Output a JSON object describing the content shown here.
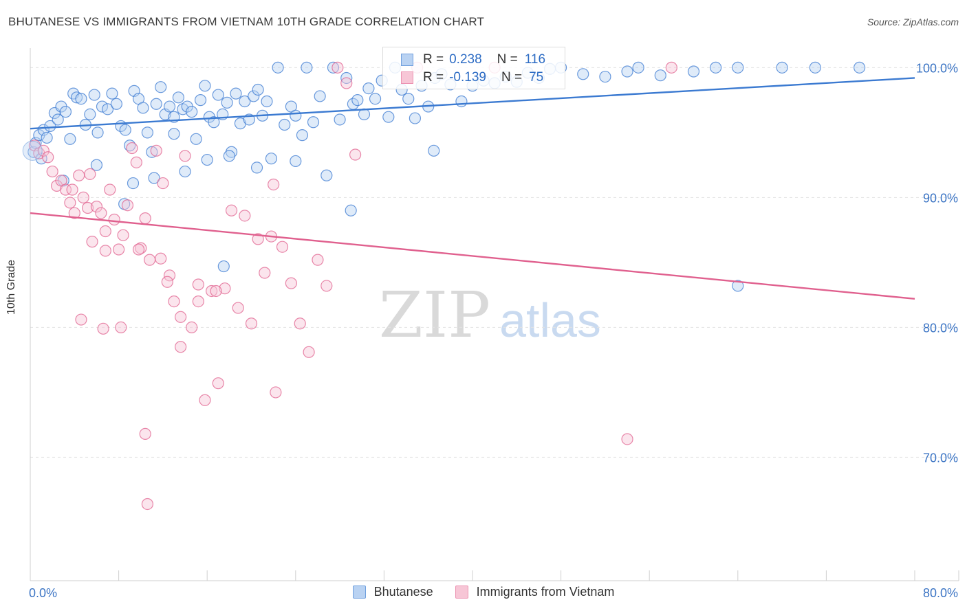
{
  "title": "BHUTANESE VS IMMIGRANTS FROM VIETNAM 10TH GRADE CORRELATION CHART",
  "source": "Source: ZipAtlas.com",
  "watermark": {
    "zip": "ZIP",
    "atlas": "atlas"
  },
  "legend_stats": [
    {
      "r_label": "R =",
      "r": "0.238",
      "n_label": "N =",
      "n": "116",
      "color": "#6f9fde",
      "fill": "#b9d2f2"
    },
    {
      "r_label": "R =",
      "r": "-0.139",
      "n_label": "N =",
      "n": "75",
      "color": "#ec93b2",
      "fill": "#f7c6d6"
    }
  ],
  "chart_data": {
    "type": "scatter",
    "title": "BHUTANESE VS IMMIGRANTS FROM VIETNAM 10TH GRADE CORRELATION CHART",
    "xlabel": "",
    "ylabel": "10th Grade",
    "xlim": [
      0,
      80
    ],
    "ylim": [
      60.5,
      101.5
    ],
    "x_ticks": [
      {
        "value": 0,
        "label": "0.0%"
      },
      {
        "value": 80,
        "label": "80.0%"
      }
    ],
    "y_ticks": [
      {
        "value": 100,
        "label": "100.0%"
      },
      {
        "value": 90,
        "label": "90.0%"
      },
      {
        "value": 80,
        "label": "80.0%"
      },
      {
        "value": 70,
        "label": "70.0%"
      }
    ],
    "grid": true,
    "legend": "bottom-center",
    "series": [
      {
        "name": "Bhutanese",
        "color": "#3b7ad1",
        "fill": "#b9d2f2",
        "trend": {
          "x": [
            0,
            80
          ],
          "y": [
            95.3,
            99.2
          ]
        },
        "points": [
          [
            0.3,
            93.5
          ],
          [
            0.5,
            94.2
          ],
          [
            0.8,
            94.8
          ],
          [
            1.0,
            93.0
          ],
          [
            1.2,
            95.2
          ],
          [
            1.5,
            94.6
          ],
          [
            1.8,
            95.5
          ],
          [
            2.2,
            96.5
          ],
          [
            2.5,
            96.0
          ],
          [
            2.8,
            97.0
          ],
          [
            3.2,
            96.6
          ],
          [
            3.6,
            94.5
          ],
          [
            3.9,
            98.0
          ],
          [
            4.2,
            97.7
          ],
          [
            4.6,
            97.6
          ],
          [
            5.0,
            95.6
          ],
          [
            5.4,
            96.4
          ],
          [
            5.8,
            97.9
          ],
          [
            6.1,
            95.0
          ],
          [
            6.5,
            97.0
          ],
          [
            7.0,
            96.8
          ],
          [
            7.4,
            98.0
          ],
          [
            7.8,
            97.2
          ],
          [
            8.2,
            95.5
          ],
          [
            8.6,
            95.2
          ],
          [
            9.0,
            94.0
          ],
          [
            9.4,
            98.2
          ],
          [
            9.8,
            97.6
          ],
          [
            10.2,
            96.9
          ],
          [
            10.6,
            95.0
          ],
          [
            11.0,
            93.5
          ],
          [
            11.4,
            97.2
          ],
          [
            11.8,
            98.5
          ],
          [
            12.2,
            96.4
          ],
          [
            12.6,
            97.0
          ],
          [
            13.0,
            96.2
          ],
          [
            13.4,
            97.7
          ],
          [
            13.8,
            96.8
          ],
          [
            14.2,
            97.0
          ],
          [
            14.6,
            96.6
          ],
          [
            15.0,
            94.5
          ],
          [
            15.4,
            97.5
          ],
          [
            15.8,
            98.6
          ],
          [
            16.2,
            96.2
          ],
          [
            16.6,
            95.8
          ],
          [
            17.0,
            97.9
          ],
          [
            17.4,
            96.4
          ],
          [
            17.8,
            97.3
          ],
          [
            18.2,
            93.5
          ],
          [
            18.6,
            98.0
          ],
          [
            19.0,
            95.7
          ],
          [
            19.4,
            97.4
          ],
          [
            19.8,
            96.0
          ],
          [
            20.2,
            97.8
          ],
          [
            20.6,
            98.3
          ],
          [
            21.0,
            96.3
          ],
          [
            21.4,
            97.4
          ],
          [
            21.8,
            93.0
          ],
          [
            22.4,
            100.0
          ],
          [
            23.0,
            95.6
          ],
          [
            23.6,
            97.0
          ],
          [
            24.0,
            96.3
          ],
          [
            24.6,
            94.8
          ],
          [
            25.0,
            100.0
          ],
          [
            25.6,
            95.8
          ],
          [
            26.2,
            97.8
          ],
          [
            26.8,
            91.7
          ],
          [
            27.4,
            100.0
          ],
          [
            28.0,
            96.0
          ],
          [
            28.6,
            99.2
          ],
          [
            29.2,
            97.2
          ],
          [
            29.6,
            97.5
          ],
          [
            30.2,
            96.4
          ],
          [
            30.6,
            98.4
          ],
          [
            31.2,
            97.6
          ],
          [
            31.8,
            99.0
          ],
          [
            32.4,
            96.2
          ],
          [
            33.0,
            100.0
          ],
          [
            33.6,
            98.3
          ],
          [
            34.2,
            97.6
          ],
          [
            34.8,
            96.1
          ],
          [
            35.4,
            98.6
          ],
          [
            36.0,
            97.0
          ],
          [
            36.6,
            99.2
          ],
          [
            37.2,
            99.5
          ],
          [
            38.0,
            98.7
          ],
          [
            39.0,
            97.4
          ],
          [
            40.0,
            98.6
          ],
          [
            41.0,
            99.0
          ],
          [
            42.0,
            98.8
          ],
          [
            43.0,
            99.3
          ],
          [
            44.0,
            98.9
          ],
          [
            45.0,
            99.6
          ],
          [
            46.0,
            99.2
          ],
          [
            47.0,
            99.9
          ],
          [
            48.0,
            100.0
          ],
          [
            50.0,
            99.5
          ],
          [
            52.0,
            99.3
          ],
          [
            54.0,
            99.7
          ],
          [
            55.0,
            100.0
          ],
          [
            57.0,
            99.4
          ],
          [
            60.0,
            99.7
          ],
          [
            62.0,
            100.0
          ],
          [
            64.0,
            100.0
          ],
          [
            68.0,
            100.0
          ],
          [
            71.0,
            100.0
          ],
          [
            75.0,
            100.0
          ],
          [
            64.0,
            83.2
          ],
          [
            29.0,
            89.0
          ],
          [
            17.5,
            84.7
          ],
          [
            9.3,
            91.1
          ],
          [
            14.0,
            92.0
          ],
          [
            18.0,
            93.2
          ],
          [
            13.0,
            94.9
          ],
          [
            16.0,
            92.9
          ],
          [
            20.5,
            92.3
          ],
          [
            24.0,
            92.8
          ],
          [
            8.5,
            89.5
          ],
          [
            11.2,
            91.5
          ],
          [
            6.0,
            92.5
          ],
          [
            3.0,
            91.3
          ],
          [
            36.5,
            93.6
          ]
        ]
      },
      {
        "name": "Immigrants from Vietnam",
        "color": "#e0608e",
        "fill": "#f7c6d6",
        "trend": {
          "x": [
            0,
            80
          ],
          "y": [
            88.8,
            82.2
          ]
        },
        "points": [
          [
            0.4,
            94.0
          ],
          [
            0.8,
            93.4
          ],
          [
            1.2,
            93.6
          ],
          [
            1.6,
            93.1
          ],
          [
            2.0,
            92.0
          ],
          [
            2.4,
            90.9
          ],
          [
            2.8,
            91.3
          ],
          [
            3.2,
            90.6
          ],
          [
            3.6,
            89.6
          ],
          [
            4.0,
            88.8
          ],
          [
            4.4,
            91.7
          ],
          [
            4.8,
            90.0
          ],
          [
            5.2,
            89.2
          ],
          [
            5.6,
            86.6
          ],
          [
            6.0,
            89.3
          ],
          [
            6.4,
            88.8
          ],
          [
            6.8,
            87.4
          ],
          [
            7.2,
            90.6
          ],
          [
            7.6,
            88.3
          ],
          [
            8.0,
            86.0
          ],
          [
            8.4,
            87.1
          ],
          [
            8.8,
            89.4
          ],
          [
            9.2,
            93.8
          ],
          [
            9.6,
            92.7
          ],
          [
            10.0,
            86.1
          ],
          [
            10.4,
            88.4
          ],
          [
            10.8,
            85.2
          ],
          [
            11.4,
            93.6
          ],
          [
            12.0,
            91.1
          ],
          [
            12.6,
            84.0
          ],
          [
            13.0,
            82.0
          ],
          [
            13.6,
            78.5
          ],
          [
            14.0,
            93.2
          ],
          [
            14.6,
            80.0
          ],
          [
            15.2,
            82.0
          ],
          [
            15.8,
            74.4
          ],
          [
            16.4,
            82.8
          ],
          [
            17.0,
            75.7
          ],
          [
            17.6,
            83.0
          ],
          [
            18.2,
            89.0
          ],
          [
            18.8,
            81.5
          ],
          [
            19.4,
            88.6
          ],
          [
            20.0,
            80.3
          ],
          [
            20.6,
            86.8
          ],
          [
            21.2,
            84.2
          ],
          [
            21.8,
            87.0
          ],
          [
            22.2,
            75.0
          ],
          [
            22.8,
            86.2
          ],
          [
            23.6,
            83.4
          ],
          [
            24.4,
            80.3
          ],
          [
            25.2,
            78.1
          ],
          [
            26.0,
            85.2
          ],
          [
            26.8,
            83.2
          ],
          [
            27.8,
            100.0
          ],
          [
            28.6,
            98.8
          ],
          [
            29.4,
            93.3
          ],
          [
            6.6,
            79.9
          ],
          [
            8.2,
            80.0
          ],
          [
            10.4,
            71.8
          ],
          [
            10.6,
            66.4
          ],
          [
            4.6,
            80.6
          ],
          [
            15.2,
            83.3
          ],
          [
            12.4,
            83.5
          ],
          [
            13.6,
            80.8
          ],
          [
            9.8,
            86.0
          ],
          [
            11.8,
            85.3
          ],
          [
            16.8,
            82.8
          ],
          [
            6.8,
            85.9
          ],
          [
            3.8,
            90.6
          ],
          [
            54.0,
            71.4
          ],
          [
            58.0,
            100.0
          ],
          [
            35.0,
            100.0
          ],
          [
            42.0,
            100.0
          ],
          [
            22.0,
            91.0
          ],
          [
            5.4,
            91.8
          ]
        ]
      }
    ]
  }
}
